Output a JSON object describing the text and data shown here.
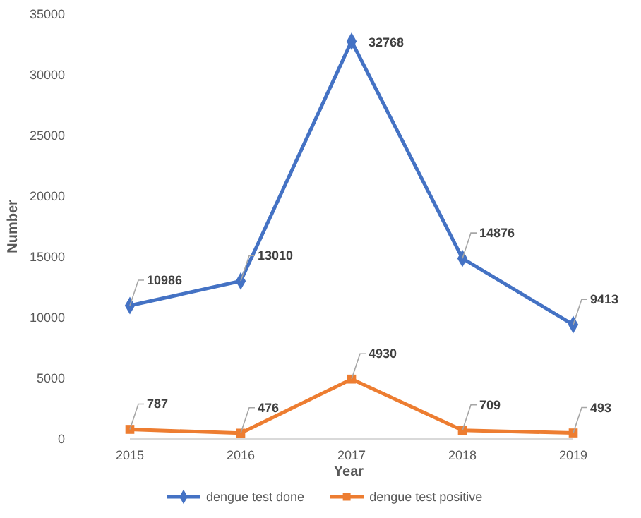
{
  "chart_data": {
    "type": "line",
    "xlabel": "Year",
    "ylabel": "Number",
    "categories": [
      "2015",
      "2016",
      "2017",
      "2018",
      "2019"
    ],
    "series": [
      {
        "name": "dengue test done",
        "color": "#4472c4",
        "marker": "diamond",
        "values": [
          10986,
          13010,
          32768,
          14876,
          9413
        ]
      },
      {
        "name": "dengue test positive",
        "color": "#ed7d31",
        "marker": "square",
        "values": [
          787,
          476,
          4930,
          709,
          493
        ]
      }
    ],
    "ylim": [
      0,
      35000
    ],
    "yticks": [
      0,
      5000,
      10000,
      15000,
      20000,
      25000,
      30000,
      35000
    ],
    "data_labels": true,
    "legend": "bottom"
  }
}
